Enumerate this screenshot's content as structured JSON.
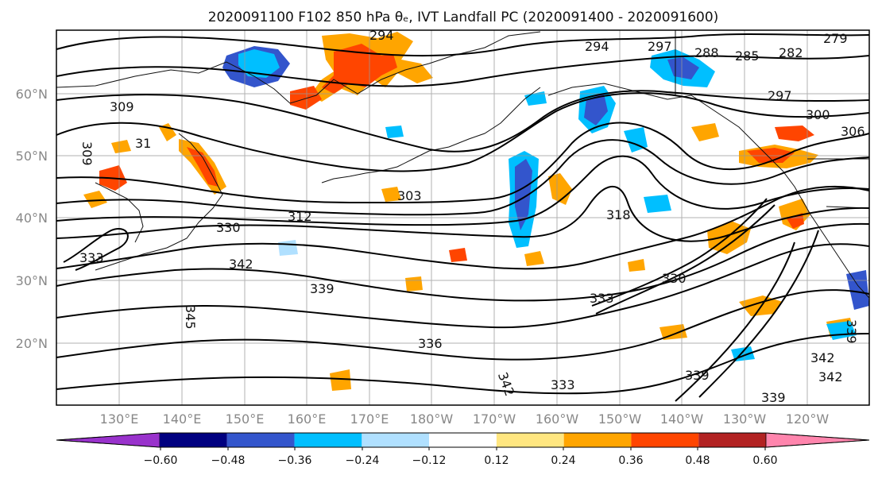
{
  "title": "2020091100 F102 850 hPa θₑ, IVT Landfall PC (2020091400 - 2020091600)",
  "map": {
    "lat_labels": [
      "60°N",
      "50°N",
      "40°N",
      "30°N",
      "20°N"
    ],
    "lon_labels": [
      "130°E",
      "140°E",
      "150°E",
      "160°E",
      "170°E",
      "180°W",
      "170°W",
      "160°W",
      "150°W",
      "140°W",
      "130°W",
      "120°W"
    ],
    "contour_labels": [
      "294",
      "294",
      "297",
      "288",
      "285",
      "282",
      "279",
      "297",
      "300",
      "306",
      "309",
      "309",
      "31",
      "303",
      "318",
      "330",
      "312",
      "342",
      "339",
      "333",
      "330",
      "345",
      "336",
      "333",
      "342",
      "333",
      "339",
      "339",
      "342",
      "342",
      "339"
    ]
  },
  "colorbar": {
    "tick_labels": [
      "−0.60",
      "−0.48",
      "−0.36",
      "−0.24",
      "−0.12",
      "0.12",
      "0.24",
      "0.36",
      "0.48",
      "0.60"
    ],
    "colors": [
      "#9932cc",
      "#000080",
      "#3355cc",
      "#00bfff",
      "#b0e0ff",
      "#ffffff",
      "#ffe680",
      "#ffa500",
      "#ff4500",
      "#b22222",
      "#ff85ad"
    ]
  }
}
